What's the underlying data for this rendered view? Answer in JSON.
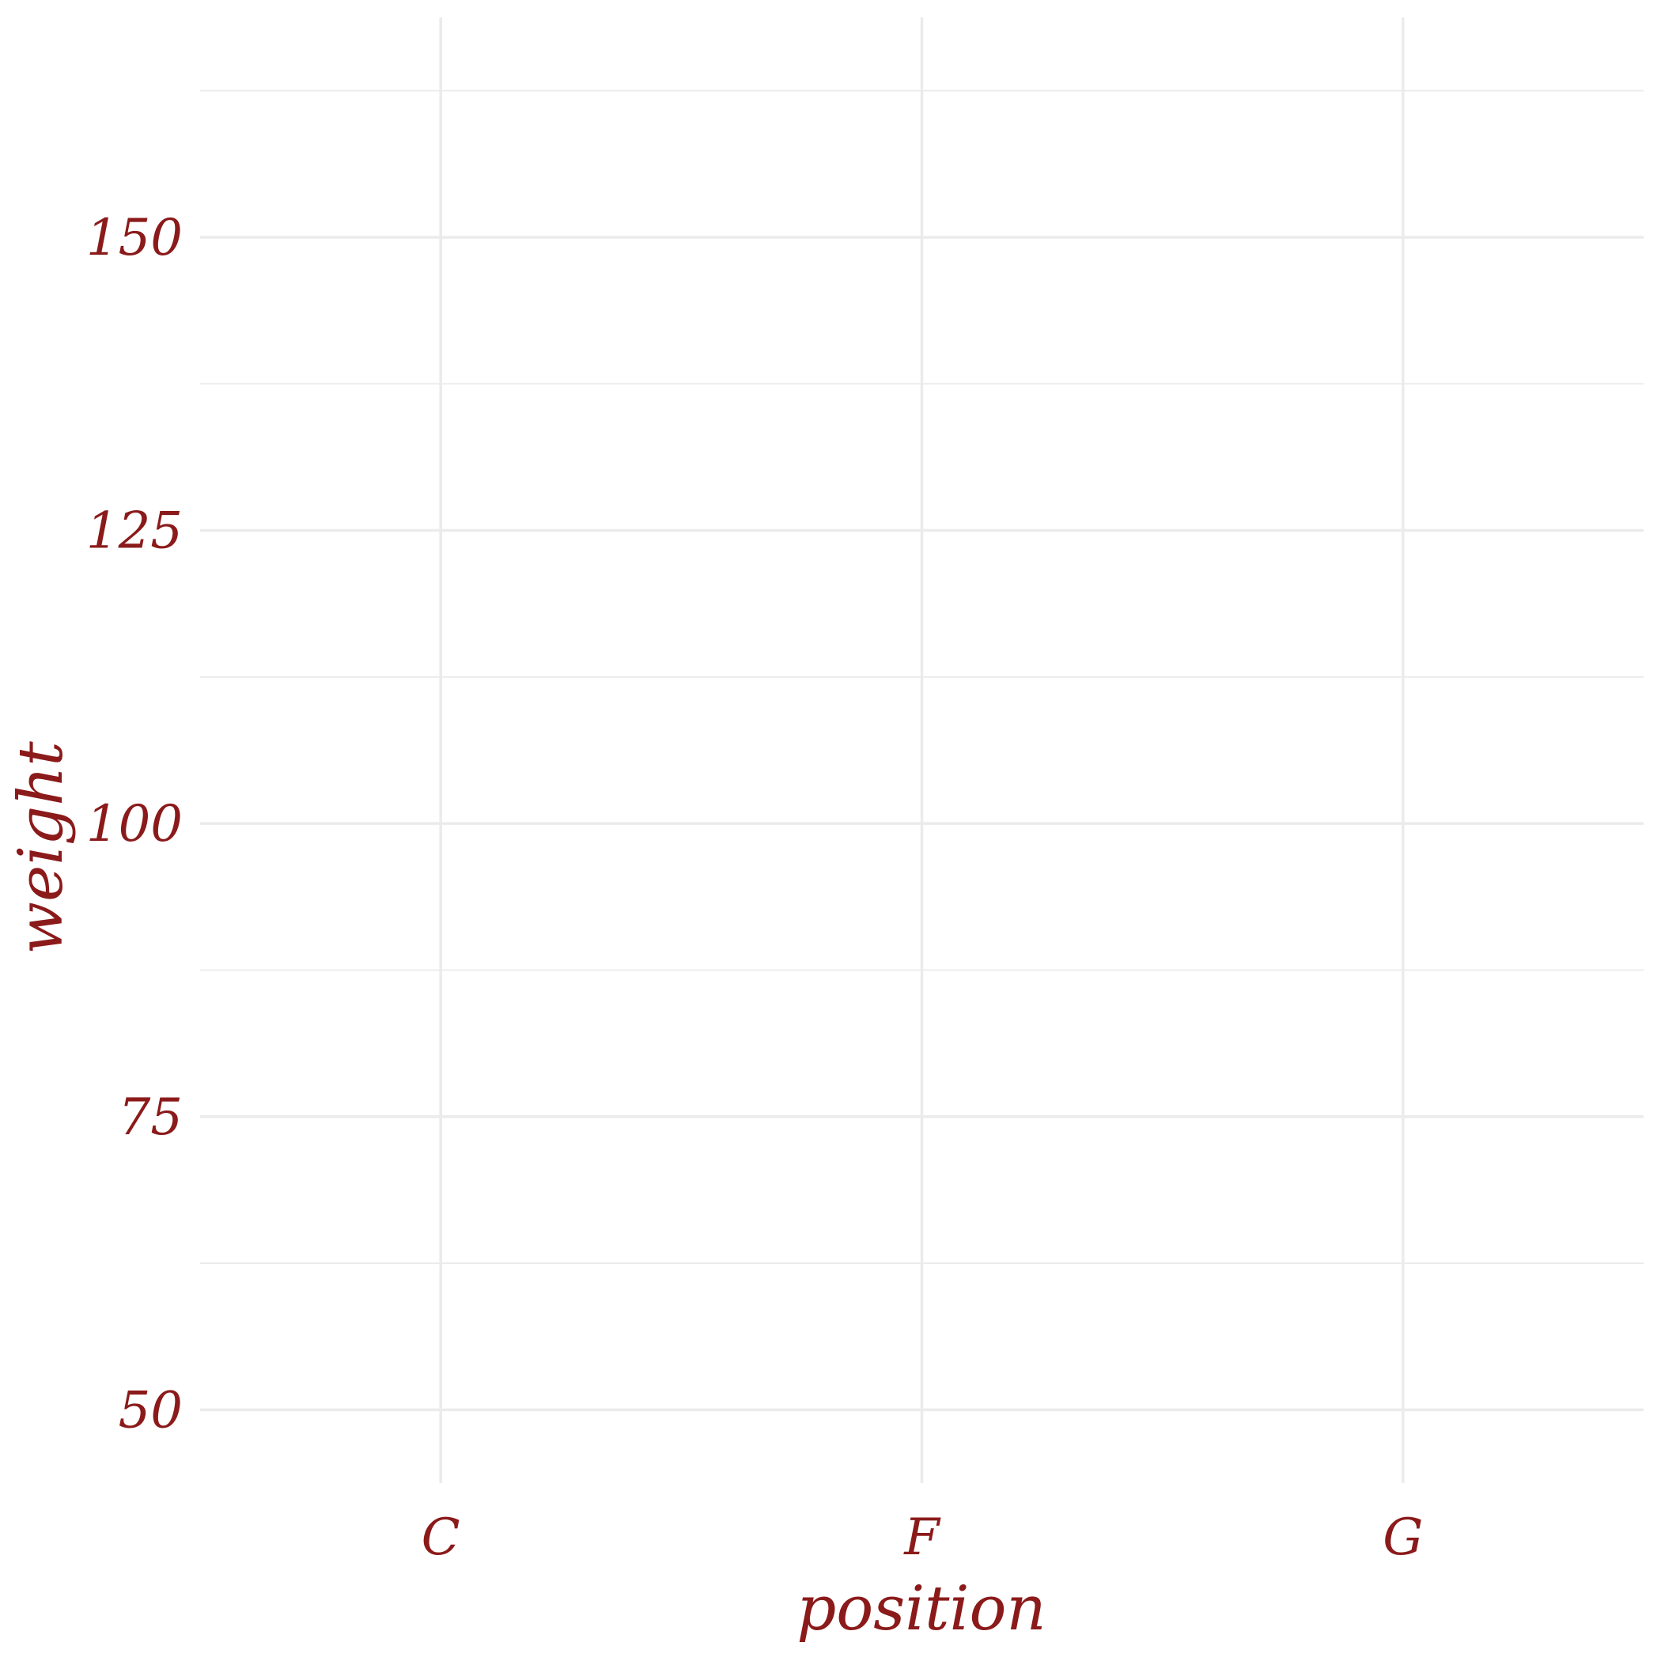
{
  "chart_data": {
    "type": "scatter",
    "title": "",
    "xlabel": "position",
    "ylabel": "weight",
    "categories": [
      "C",
      "F",
      "G"
    ],
    "x": [],
    "y": [],
    "ylim": [
      43.75,
      168.75
    ],
    "yticks": [
      "50",
      "75",
      "100",
      "125",
      "150"
    ],
    "grid": true,
    "legend": "none"
  },
  "colors": {
    "text": "#8B1A1A",
    "grid": "#EBEBEB",
    "background": "#FFFFFF"
  }
}
